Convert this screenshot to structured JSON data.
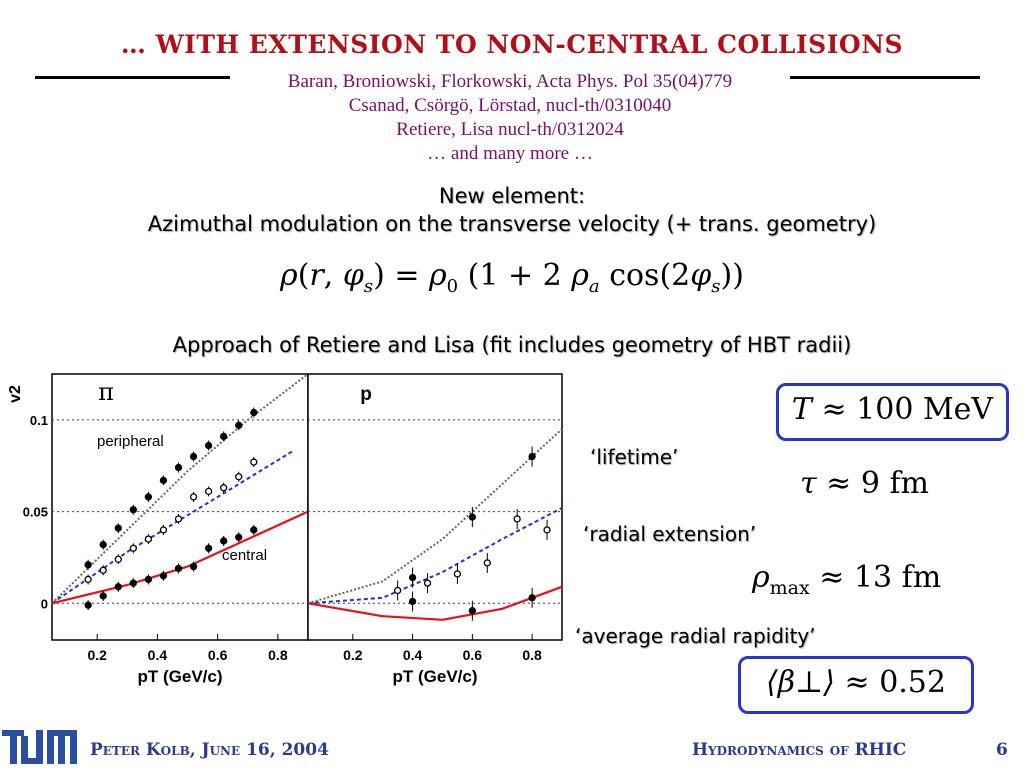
{
  "slide": {
    "title": "… WITH EXTENSION TO NON-CENTRAL COLLISIONS",
    "references": [
      "Baran, Broniowski, Florkowski, Acta Phys. Pol 35(04)779",
      "Csanad, Csörgö, Lörstad, nucl-th/0310040",
      "Retiere, Lisa nucl-th/0312024",
      "… and many more …"
    ],
    "new_element_line1": "New element:",
    "new_element_line2": "Azimuthal modulation on the transverse velocity (+ trans. geometry)",
    "formula": "ρ(r, φs) = ρ0 (1 + 2 ρa cos(2φs))",
    "approach": "Approach of Retiere and Lisa (fit includes geometry of HBT radii)"
  },
  "params": {
    "T": {
      "symbol": "T",
      "value": "≈ 100 MeV",
      "boxed": true
    },
    "lifetime": {
      "label": "‘lifetime’",
      "symbol": "τ",
      "value": "≈ 9 fm"
    },
    "radial_extension": {
      "label": "‘radial extension’",
      "symbol": "ρ",
      "sub": "max",
      "value": "≈ 13 fm"
    },
    "radial_rapidity": {
      "label": "‘average radial rapidity’",
      "symbol": "⟨β⊥⟩",
      "value": "≈ 0.52",
      "boxed": true
    }
  },
  "footer": {
    "left": "Peter Kolb, June 16, 2004",
    "right": "Hydrodynamics of RHIC",
    "page": "6"
  },
  "colors": {
    "title": "#b0101a",
    "refs": "#7a0f6a",
    "box": "#2a36c8",
    "footer": "#2b3a8c",
    "central_fit": "#e8101a",
    "peripheral_fit": "#2233cc",
    "ideal_fit": "#666666"
  },
  "chart_data": [
    {
      "type": "scatter",
      "panel_label": "π",
      "ylabel": "v2",
      "xlabel": "pT (GeV/c)",
      "xlim": [
        0.05,
        0.9
      ],
      "ylim": [
        -0.02,
        0.125
      ],
      "x_ticks": [
        "0.2",
        "0.4",
        "0.6",
        "0.8"
      ],
      "y_ticks": [
        "0",
        "0.05",
        "0.1"
      ],
      "grid_y": [
        0,
        0.05,
        0.1
      ],
      "annotations": [
        "peripheral",
        "central"
      ],
      "series": [
        {
          "marker": "filled",
          "points": [
            [
              0.17,
              0.021
            ],
            [
              0.22,
              0.032
            ],
            [
              0.27,
              0.041
            ],
            [
              0.32,
              0.051
            ],
            [
              0.37,
              0.058
            ],
            [
              0.42,
              0.067
            ],
            [
              0.47,
              0.074
            ],
            [
              0.52,
              0.08
            ],
            [
              0.57,
              0.086
            ],
            [
              0.62,
              0.091
            ],
            [
              0.67,
              0.097
            ],
            [
              0.72,
              0.104
            ]
          ]
        },
        {
          "marker": "open",
          "points": [
            [
              0.17,
              0.013
            ],
            [
              0.22,
              0.018
            ],
            [
              0.27,
              0.024
            ],
            [
              0.32,
              0.03
            ],
            [
              0.37,
              0.035
            ],
            [
              0.42,
              0.04
            ],
            [
              0.47,
              0.046
            ],
            [
              0.52,
              0.058
            ],
            [
              0.57,
              0.061
            ],
            [
              0.62,
              0.063
            ],
            [
              0.67,
              0.069
            ],
            [
              0.72,
              0.077
            ]
          ]
        },
        {
          "marker": "filled",
          "points": [
            [
              0.17,
              -0.001
            ],
            [
              0.22,
              0.004
            ],
            [
              0.27,
              0.009
            ],
            [
              0.32,
              0.011
            ],
            [
              0.37,
              0.013
            ],
            [
              0.42,
              0.015
            ],
            [
              0.47,
              0.019
            ],
            [
              0.52,
              0.02
            ],
            [
              0.57,
              0.03
            ],
            [
              0.62,
              0.034
            ],
            [
              0.67,
              0.036
            ],
            [
              0.72,
              0.04
            ]
          ]
        }
      ],
      "curves": [
        {
          "style": "dotted",
          "color": "#666666",
          "points": [
            [
              0.05,
              0.0
            ],
            [
              0.3,
              0.04
            ],
            [
              0.5,
              0.072
            ],
            [
              0.7,
              0.1
            ],
            [
              0.9,
              0.125
            ]
          ]
        },
        {
          "style": "dashed",
          "color": "#2233cc",
          "points": [
            [
              0.05,
              0.0
            ],
            [
              0.3,
              0.028
            ],
            [
              0.5,
              0.048
            ],
            [
              0.7,
              0.068
            ],
            [
              0.85,
              0.083
            ]
          ]
        },
        {
          "style": "solid",
          "color": "#e8101a",
          "points": [
            [
              0.05,
              0.0
            ],
            [
              0.3,
              0.01
            ],
            [
              0.5,
              0.02
            ],
            [
              0.7,
              0.035
            ],
            [
              0.9,
              0.05
            ]
          ]
        }
      ]
    },
    {
      "type": "scatter",
      "panel_label": "p",
      "xlabel": "pT (GeV/c)",
      "xlim": [
        0.05,
        0.9
      ],
      "ylim": [
        -0.02,
        0.125
      ],
      "x_ticks": [
        "0.2",
        "0.4",
        "0.6",
        "0.8"
      ],
      "grid_y": [
        0,
        0.05,
        0.1
      ],
      "series": [
        {
          "marker": "filled",
          "points": [
            [
              0.4,
              0.014
            ],
            [
              0.6,
              0.047
            ],
            [
              0.8,
              0.08
            ]
          ]
        },
        {
          "marker": "open",
          "points": [
            [
              0.35,
              0.007
            ],
            [
              0.45,
              0.011
            ],
            [
              0.55,
              0.016
            ],
            [
              0.65,
              0.022
            ],
            [
              0.75,
              0.046
            ],
            [
              0.85,
              0.04
            ]
          ]
        },
        {
          "marker": "filled",
          "points": [
            [
              0.4,
              0.001
            ],
            [
              0.6,
              -0.004
            ],
            [
              0.8,
              0.003
            ]
          ]
        }
      ],
      "curves": [
        {
          "style": "dotted",
          "color": "#666666",
          "points": [
            [
              0.05,
              0.0
            ],
            [
              0.3,
              0.012
            ],
            [
              0.5,
              0.035
            ],
            [
              0.7,
              0.065
            ],
            [
              0.9,
              0.095
            ]
          ]
        },
        {
          "style": "dashed",
          "color": "#2233cc",
          "points": [
            [
              0.05,
              0.0
            ],
            [
              0.3,
              0.003
            ],
            [
              0.5,
              0.017
            ],
            [
              0.7,
              0.035
            ],
            [
              0.9,
              0.052
            ]
          ]
        },
        {
          "style": "solid",
          "color": "#e8101a",
          "points": [
            [
              0.05,
              0.0
            ],
            [
              0.3,
              -0.007
            ],
            [
              0.5,
              -0.009
            ],
            [
              0.7,
              -0.003
            ],
            [
              0.9,
              0.009
            ]
          ]
        }
      ]
    }
  ]
}
